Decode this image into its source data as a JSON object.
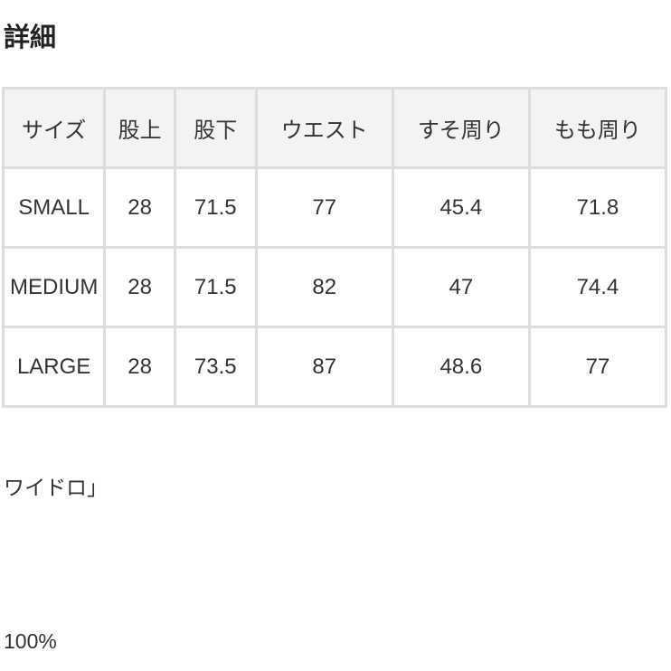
{
  "section_title": "詳細",
  "table": {
    "headers": [
      "サイズ",
      "股上",
      "股下",
      "ウエスト",
      "すそ周り",
      "もも周り"
    ],
    "rows": [
      [
        "SMALL",
        "28",
        "71.5",
        "77",
        "45.4",
        "71.8"
      ],
      [
        "MEDIUM",
        "28",
        "71.5",
        "82",
        "47",
        "74.4"
      ],
      [
        "LARGE",
        "28",
        "73.5",
        "87",
        "48.6",
        "77"
      ]
    ]
  },
  "text_lines": [
    "ワイドロ」",
    "100%"
  ]
}
